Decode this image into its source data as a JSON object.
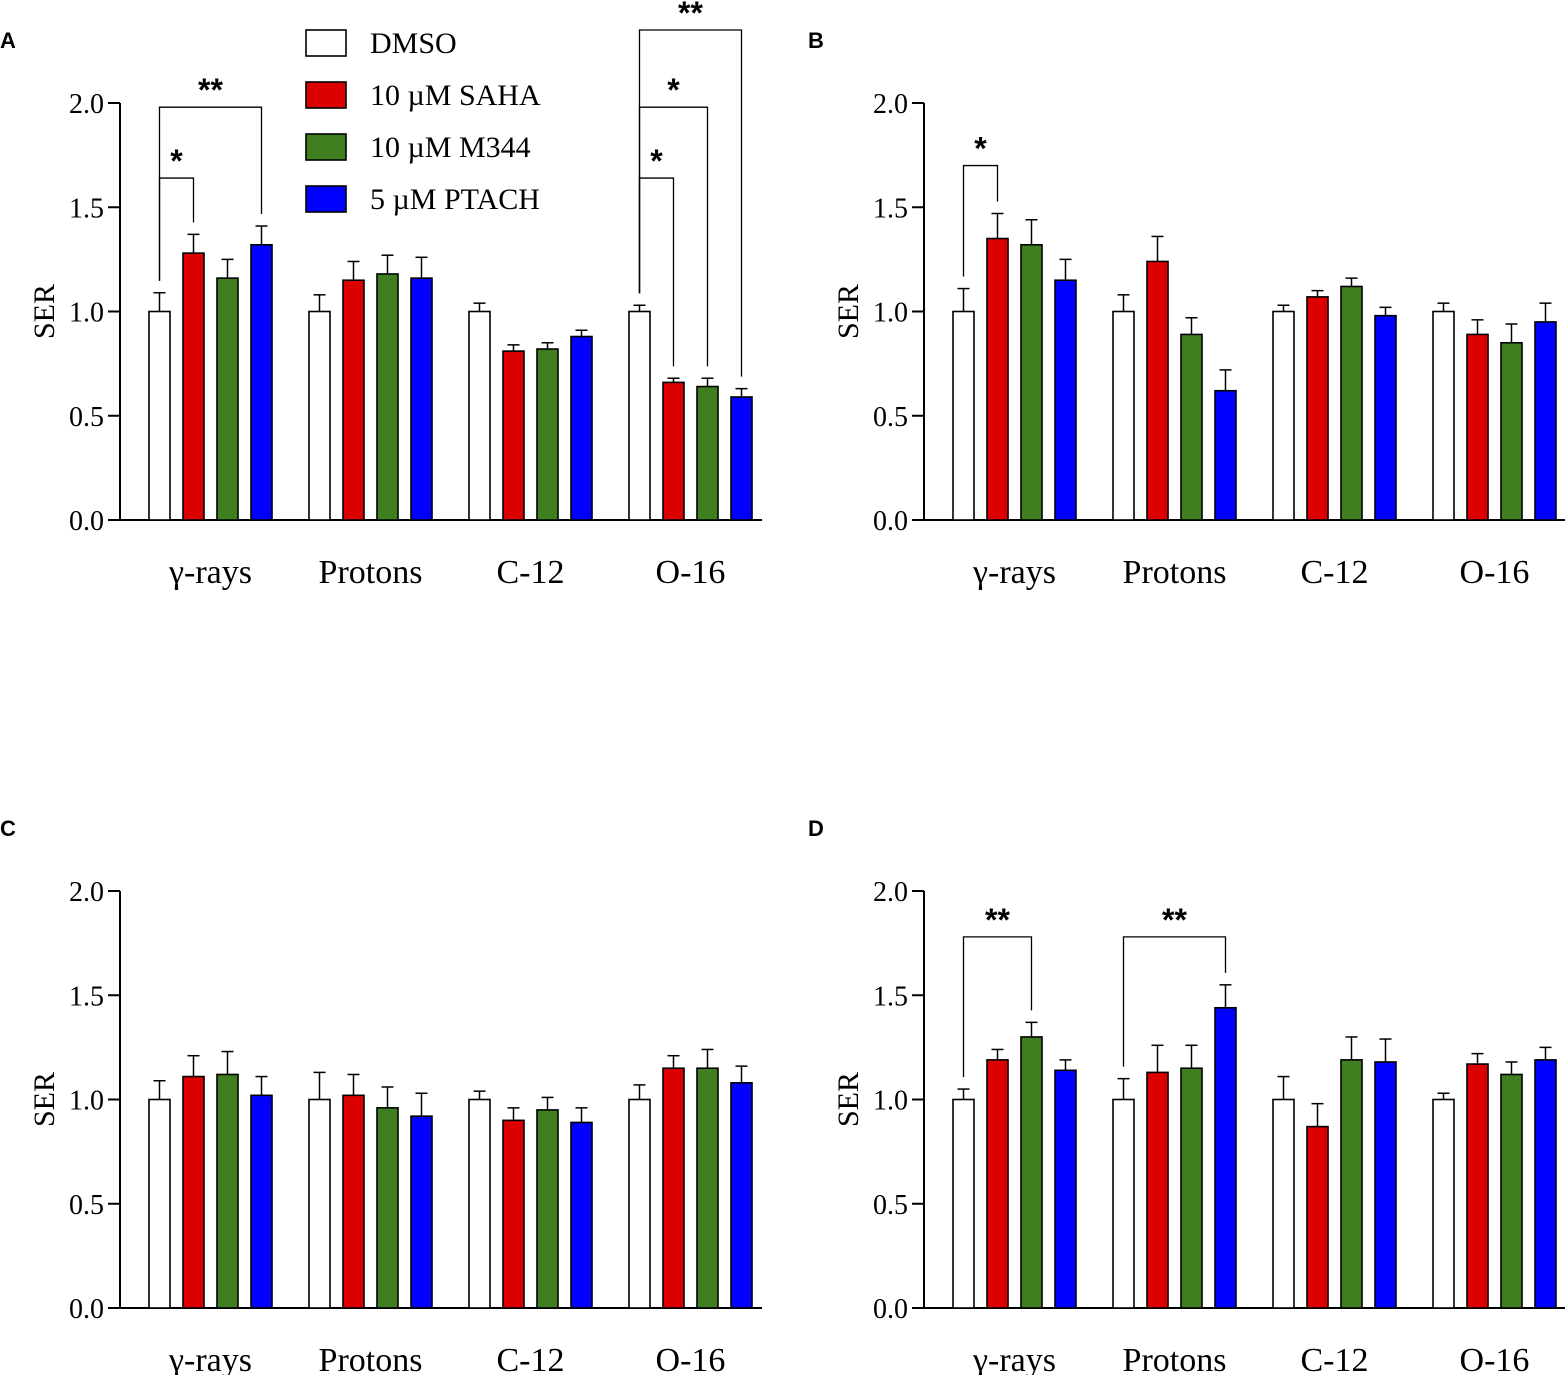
{
  "figure_title": "",
  "colors": {
    "DMSO": "#ffffff",
    "10 µM SAHA": "#dd0000",
    "10 µM M344": "#3f7f1f",
    "5 µM PTACH": "#0000ff",
    "axis": "#000000"
  },
  "legend": [
    "DMSO",
    "10 µM SAHA",
    "10 µM M344",
    "5 µM PTACH"
  ],
  "chart_data": [
    {
      "panel": "A",
      "type": "bar",
      "ylabel": "SER",
      "xlabel": "",
      "ylim": [
        0,
        2.0
      ],
      "yticks": [
        "0.0",
        "0.5",
        "1.0",
        "1.5",
        "2.0"
      ],
      "categories": [
        "γ-rays",
        "Protons",
        "C-12",
        "O-16"
      ],
      "series": [
        {
          "name": "DMSO",
          "values": [
            1.0,
            1.0,
            1.0,
            1.0
          ],
          "errors": [
            0.09,
            0.08,
            0.04,
            0.03
          ]
        },
        {
          "name": "10 µM SAHA",
          "values": [
            1.28,
            1.15,
            0.81,
            0.66
          ],
          "errors": [
            0.09,
            0.09,
            0.03,
            0.02
          ]
        },
        {
          "name": "10 µM M344",
          "values": [
            1.16,
            1.18,
            0.82,
            0.64
          ],
          "errors": [
            0.09,
            0.09,
            0.03,
            0.04
          ]
        },
        {
          "name": "5 µM PTACH",
          "values": [
            1.32,
            1.16,
            0.88,
            0.59
          ],
          "errors": [
            0.09,
            0.1,
            0.03,
            0.04
          ]
        }
      ],
      "significance": [
        {
          "category": 0,
          "from": 0,
          "to": 1,
          "label": "*",
          "level": 1.64
        },
        {
          "category": 0,
          "from": 0,
          "to": 3,
          "label": "**",
          "level": 1.98
        },
        {
          "category": 3,
          "from": 0,
          "to": 1,
          "label": "*",
          "level": 1.64
        },
        {
          "category": 3,
          "from": 0,
          "to": 2,
          "label": "*",
          "level": 1.98
        },
        {
          "category": 3,
          "from": 0,
          "to": 3,
          "label": "**",
          "level": 2.35
        }
      ]
    },
    {
      "panel": "B",
      "type": "bar",
      "ylabel": "SER",
      "xlabel": "",
      "ylim": [
        0,
        2.0
      ],
      "yticks": [
        "0.0",
        "0.5",
        "1.0",
        "1.5",
        "2.0"
      ],
      "categories": [
        "γ-rays",
        "Protons",
        "C-12",
        "O-16"
      ],
      "series": [
        {
          "name": "DMSO",
          "values": [
            1.0,
            1.0,
            1.0,
            1.0
          ],
          "errors": [
            0.11,
            0.08,
            0.03,
            0.04
          ]
        },
        {
          "name": "10 µM SAHA",
          "values": [
            1.35,
            1.24,
            1.07,
            0.89
          ],
          "errors": [
            0.12,
            0.12,
            0.03,
            0.07
          ]
        },
        {
          "name": "10 µM M344",
          "values": [
            1.32,
            0.89,
            1.12,
            0.85
          ],
          "errors": [
            0.12,
            0.08,
            0.04,
            0.09
          ]
        },
        {
          "name": "5 µM PTACH",
          "values": [
            1.15,
            0.62,
            0.98,
            0.95
          ],
          "errors": [
            0.1,
            0.1,
            0.04,
            0.09
          ]
        }
      ],
      "significance": [
        {
          "category": 0,
          "from": 0,
          "to": 1,
          "label": "*",
          "level": 1.7
        }
      ]
    },
    {
      "panel": "C",
      "type": "bar",
      "ylabel": "SER",
      "xlabel": "",
      "ylim": [
        0,
        2.0
      ],
      "yticks": [
        "0.0",
        "0.5",
        "1.0",
        "1.5",
        "2.0"
      ],
      "categories": [
        "γ-rays",
        "Protons",
        "C-12",
        "O-16"
      ],
      "series": [
        {
          "name": "DMSO",
          "values": [
            1.0,
            1.0,
            1.0,
            1.0
          ],
          "errors": [
            0.09,
            0.13,
            0.04,
            0.07
          ]
        },
        {
          "name": "10 µM SAHA",
          "values": [
            1.11,
            1.02,
            0.9,
            1.15
          ],
          "errors": [
            0.1,
            0.1,
            0.06,
            0.06
          ]
        },
        {
          "name": "10 µM M344",
          "values": [
            1.12,
            0.96,
            0.95,
            1.15
          ],
          "errors": [
            0.11,
            0.1,
            0.06,
            0.09
          ]
        },
        {
          "name": "5 µM PTACH",
          "values": [
            1.02,
            0.92,
            0.89,
            1.08
          ],
          "errors": [
            0.09,
            0.11,
            0.07,
            0.08
          ]
        }
      ],
      "significance": []
    },
    {
      "panel": "D",
      "type": "bar",
      "ylabel": "SER",
      "xlabel": "",
      "ylim": [
        0,
        2.0
      ],
      "yticks": [
        "0.0",
        "0.5",
        "1.0",
        "1.5",
        "2.0"
      ],
      "categories": [
        "γ-rays",
        "Protons",
        "C-12",
        "O-16"
      ],
      "series": [
        {
          "name": "DMSO",
          "values": [
            1.0,
            1.0,
            1.0,
            1.0
          ],
          "errors": [
            0.05,
            0.1,
            0.11,
            0.03
          ]
        },
        {
          "name": "10 µM SAHA",
          "values": [
            1.19,
            1.13,
            0.87,
            1.17
          ],
          "errors": [
            0.05,
            0.13,
            0.11,
            0.05
          ]
        },
        {
          "name": "10 µM M344",
          "values": [
            1.3,
            1.15,
            1.19,
            1.12
          ],
          "errors": [
            0.07,
            0.11,
            0.11,
            0.06
          ]
        },
        {
          "name": "5 µM PTACH",
          "values": [
            1.14,
            1.44,
            1.18,
            1.19
          ],
          "errors": [
            0.05,
            0.11,
            0.11,
            0.06
          ]
        }
      ],
      "significance": [
        {
          "category": 0,
          "from": 0,
          "to": 2,
          "label": "**",
          "level": 1.78
        },
        {
          "category": 1,
          "from": 0,
          "to": 3,
          "label": "**",
          "level": 1.78
        }
      ]
    }
  ]
}
